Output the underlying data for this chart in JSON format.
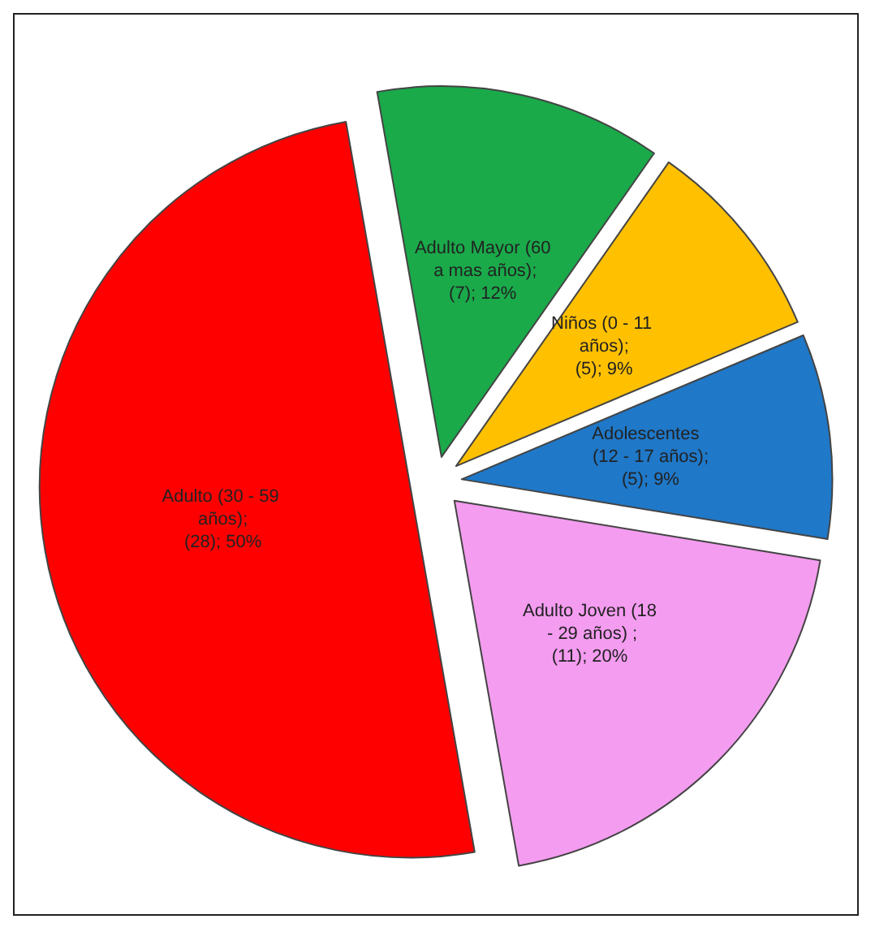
{
  "chart_data": {
    "type": "pie",
    "categories": [
      "Adulto Mayor (60 a mas años)",
      "Niños (0 - 11 años)",
      "Adolescentes  (12 - 17 años)",
      "Adulto Joven (18 - 29 años)",
      "Adulto (30 - 59 años)"
    ],
    "values": [
      7,
      5,
      5,
      11,
      28
    ],
    "value_labels": [
      ";\n(7); 12%",
      ";\n(5); 9%",
      ";\n(5); 9%",
      " ;\n(11); 20%",
      ";\n(28); 50%"
    ],
    "colors": [
      "#1aaa4a",
      "#ffc000",
      "#1f78c8",
      "#f49cf0",
      "#ff0000"
    ],
    "legend": false
  }
}
